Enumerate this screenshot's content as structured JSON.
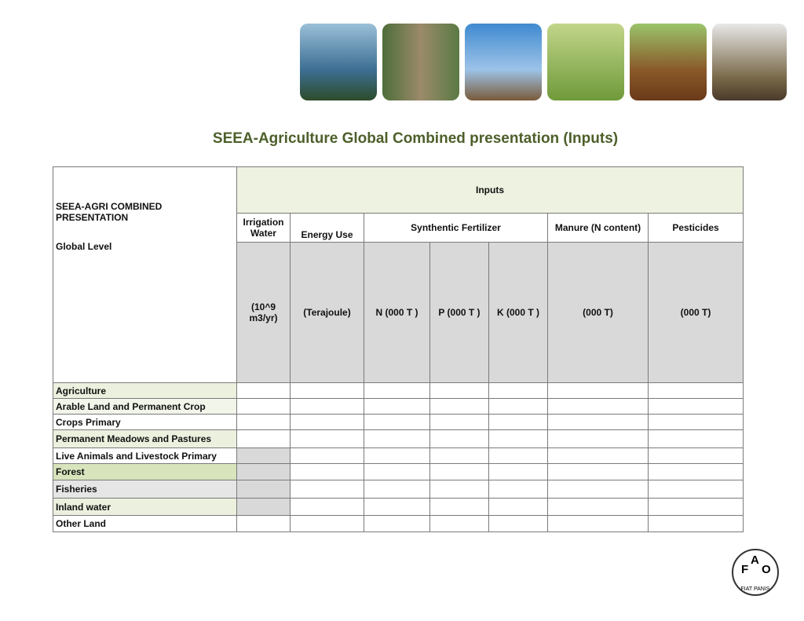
{
  "title": "SEEA-Agriculture Global Combined presentation (Inputs)",
  "table": {
    "corner": [
      "SEEA-AGRI COMBINED PRESENTATION",
      "Global Level"
    ],
    "group": "Inputs",
    "columns": [
      "Irrigation Water",
      "Energy Use",
      "Synthentic Fertilizer",
      "Manure (N content)",
      "Pesticides"
    ],
    "units": [
      "(10^9 m3/yr)",
      "(Terajoule)",
      "N (000 T )",
      "P (000 T )",
      "K (000 T )",
      "(000 T)",
      "(000 T)"
    ],
    "rows": [
      "Agriculture",
      "Arable Land and Permanent Crop",
      "Crops Primary",
      "Permanent Meadows and Pastures",
      "Live Animals and Livestock Primary",
      "Forest",
      "Fisheries",
      "Inland water",
      "Other Land"
    ]
  },
  "logo": {
    "letters": [
      "F",
      "A",
      "O"
    ],
    "motto": "FIAT PANIS"
  }
}
